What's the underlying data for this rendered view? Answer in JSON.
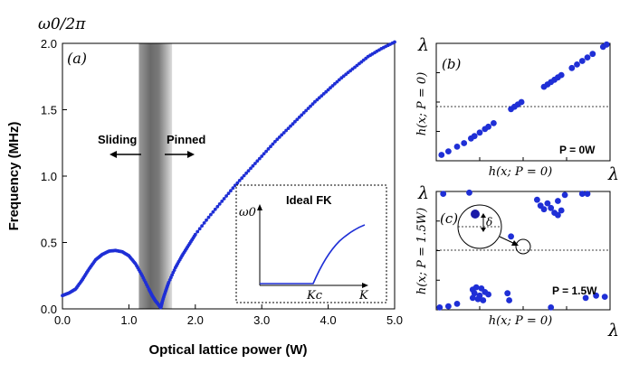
{
  "chart_data": [
    {
      "type": "scatter",
      "panel_label": "(a)",
      "title": "",
      "top_label": "ω0/2π",
      "xlabel": "Optical lattice power (W)",
      "ylabel": "Frequency (MHz)",
      "xlim": [
        0,
        5
      ],
      "ylim": [
        0,
        2
      ],
      "xticks": [
        "0.0",
        "1.0",
        "2.0",
        "3.0",
        "4.0",
        "5.0"
      ],
      "yticks": [
        "0.0",
        "0.5",
        "1.0",
        "1.5",
        "2.0"
      ],
      "shaded_band": [
        1.15,
        1.65
      ],
      "annotations": {
        "left": "Sliding",
        "right": "Pinned"
      },
      "series": [
        {
          "name": "frequency",
          "color": "#1f2fd6",
          "x": [
            0.0,
            0.1,
            0.2,
            0.3,
            0.4,
            0.5,
            0.6,
            0.7,
            0.8,
            0.9,
            1.0,
            1.1,
            1.2,
            1.3,
            1.35,
            1.4,
            1.45,
            1.48,
            1.5,
            1.55,
            1.6,
            1.7,
            1.8,
            1.9,
            2.0,
            2.2,
            2.4,
            2.6,
            2.8,
            3.0,
            3.2,
            3.4,
            3.6,
            3.8,
            4.0,
            4.2,
            4.4,
            4.6,
            4.8,
            5.0
          ],
          "y": [
            0.1,
            0.12,
            0.15,
            0.22,
            0.3,
            0.37,
            0.41,
            0.435,
            0.44,
            0.43,
            0.4,
            0.34,
            0.25,
            0.15,
            0.1,
            0.06,
            0.03,
            0.01,
            0.05,
            0.13,
            0.2,
            0.31,
            0.4,
            0.48,
            0.56,
            0.69,
            0.81,
            0.93,
            1.04,
            1.15,
            1.26,
            1.36,
            1.46,
            1.56,
            1.65,
            1.74,
            1.82,
            1.9,
            1.96,
            2.01
          ]
        }
      ],
      "inset": {
        "title": "Ideal FK",
        "ylabel": "ω0",
        "xlabel": "K",
        "xmark": "Kc",
        "curve_flat_until": 0.55,
        "curve_end_value": 0.6
      }
    },
    {
      "type": "scatter",
      "panel_label": "(b)",
      "corner_label": "λ",
      "xlabel": "h(x; P = 0)",
      "ylabel": "h(x; P = 0)",
      "annotation": "P = 0W",
      "xlim": [
        0,
        1
      ],
      "ylim": [
        0,
        1
      ],
      "reference_line_y": 0.5,
      "points": [
        [
          0.03,
          0.05
        ],
        [
          0.07,
          0.08
        ],
        [
          0.12,
          0.12
        ],
        [
          0.16,
          0.15
        ],
        [
          0.2,
          0.19
        ],
        [
          0.22,
          0.21
        ],
        [
          0.25,
          0.24
        ],
        [
          0.28,
          0.27
        ],
        [
          0.3,
          0.29
        ],
        [
          0.33,
          0.32
        ],
        [
          0.43,
          0.44
        ],
        [
          0.45,
          0.46
        ],
        [
          0.47,
          0.48
        ],
        [
          0.49,
          0.5
        ],
        [
          0.62,
          0.63
        ],
        [
          0.64,
          0.65
        ],
        [
          0.66,
          0.67
        ],
        [
          0.68,
          0.69
        ],
        [
          0.7,
          0.71
        ],
        [
          0.72,
          0.73
        ],
        [
          0.78,
          0.79
        ],
        [
          0.81,
          0.82
        ],
        [
          0.84,
          0.85
        ],
        [
          0.87,
          0.88
        ],
        [
          0.9,
          0.91
        ],
        [
          0.96,
          0.97
        ],
        [
          0.98,
          0.99
        ]
      ]
    },
    {
      "type": "scatter",
      "panel_label": "(c)",
      "corner_label": "λ",
      "xlabel": "h(x; P = 0)",
      "ylabel": "h(x; P = 1.5W)",
      "annotation": "P = 1.5W",
      "inset_symbol": "δ",
      "xlim": [
        0,
        1
      ],
      "ylim": [
        0,
        1
      ],
      "reference_line_y": 0.5,
      "points": [
        [
          0.04,
          0.98
        ],
        [
          0.02,
          0.02
        ],
        [
          0.07,
          0.03
        ],
        [
          0.12,
          0.05
        ],
        [
          0.19,
          0.99
        ],
        [
          0.21,
          0.17
        ],
        [
          0.23,
          0.19
        ],
        [
          0.22,
          0.14
        ],
        [
          0.25,
          0.12
        ],
        [
          0.26,
          0.18
        ],
        [
          0.28,
          0.15
        ],
        [
          0.3,
          0.13
        ],
        [
          0.27,
          0.08
        ],
        [
          0.24,
          0.09
        ],
        [
          0.21,
          0.1
        ],
        [
          0.41,
          0.14
        ],
        [
          0.42,
          0.08
        ],
        [
          0.43,
          0.62
        ],
        [
          0.58,
          0.93
        ],
        [
          0.6,
          0.88
        ],
        [
          0.62,
          0.85
        ],
        [
          0.64,
          0.9
        ],
        [
          0.66,
          0.86
        ],
        [
          0.68,
          0.82
        ],
        [
          0.7,
          0.8
        ],
        [
          0.72,
          0.84
        ],
        [
          0.7,
          0.92
        ],
        [
          0.74,
          0.97
        ],
        [
          0.86,
          0.1
        ],
        [
          0.92,
          0.12
        ],
        [
          0.97,
          0.11
        ],
        [
          0.84,
          0.98
        ],
        [
          0.87,
          0.98
        ],
        [
          0.66,
          0.02
        ],
        [
          0.18,
          0.82
        ]
      ]
    }
  ]
}
